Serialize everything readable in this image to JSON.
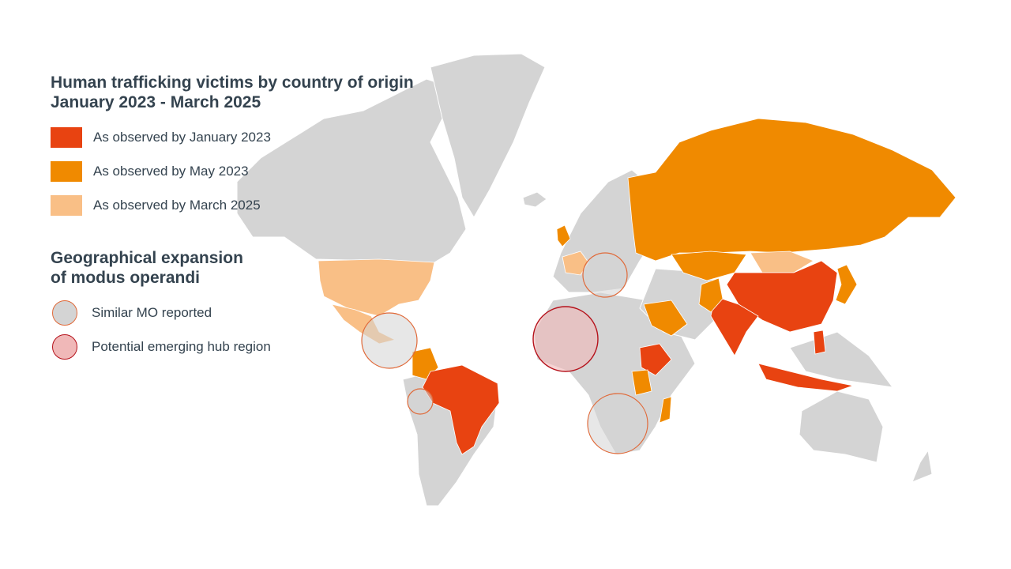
{
  "colors": {
    "land": "#d4d4d4",
    "jan2023": "#e84311",
    "may2023": "#f08a00",
    "mar2025": "#f9bf86",
    "similar_mo_fill": "#d4d4d4",
    "similar_mo_stroke": "#e06a3a",
    "hub_fill": "#f0b8b8",
    "hub_stroke": "#b5121b"
  },
  "legend": {
    "title_line1": "Human trafficking victims by country of origin",
    "title_line2": "January 2023 - March 2025",
    "items": [
      {
        "label": "As observed by January 2023"
      },
      {
        "label": "As observed by May 2023"
      },
      {
        "label": "As observed by March 2025"
      }
    ],
    "section2_line1": "Geographical expansion",
    "section2_line2": "of modus operandi",
    "markers": [
      {
        "label": "Similar MO reported"
      },
      {
        "label": "Potential emerging hub region"
      }
    ]
  },
  "map": {
    "countries": [
      {
        "name": "United States",
        "status": "mar2025"
      },
      {
        "name": "Mexico",
        "status": "mar2025"
      },
      {
        "name": "Colombia",
        "status": "may2023"
      },
      {
        "name": "Brazil",
        "status": "jan2023"
      },
      {
        "name": "United Kingdom",
        "status": "may2023"
      },
      {
        "name": "France",
        "status": "mar2025"
      },
      {
        "name": "Russia",
        "status": "may2023"
      },
      {
        "name": "Kazakhstan",
        "status": "may2023"
      },
      {
        "name": "Mongolia",
        "status": "mar2025"
      },
      {
        "name": "China",
        "status": "jan2023"
      },
      {
        "name": "India",
        "status": "jan2023"
      },
      {
        "name": "Pakistan",
        "status": "may2023"
      },
      {
        "name": "Saudi Arabia",
        "status": "may2023"
      },
      {
        "name": "Ethiopia",
        "status": "jan2023"
      },
      {
        "name": "Kenya",
        "status": "may2023"
      },
      {
        "name": "Madagascar",
        "status": "may2023"
      },
      {
        "name": "Japan",
        "status": "may2023"
      },
      {
        "name": "Indonesia",
        "status": "jan2023"
      },
      {
        "name": "Philippines",
        "status": "jan2023"
      }
    ],
    "regions": [
      {
        "name": "Central America",
        "type": "similar"
      },
      {
        "name": "Ecuador",
        "type": "similar"
      },
      {
        "name": "Southern Europe",
        "type": "similar"
      },
      {
        "name": "West Africa",
        "type": "hub"
      },
      {
        "name": "Southern Africa",
        "type": "similar"
      }
    ]
  }
}
